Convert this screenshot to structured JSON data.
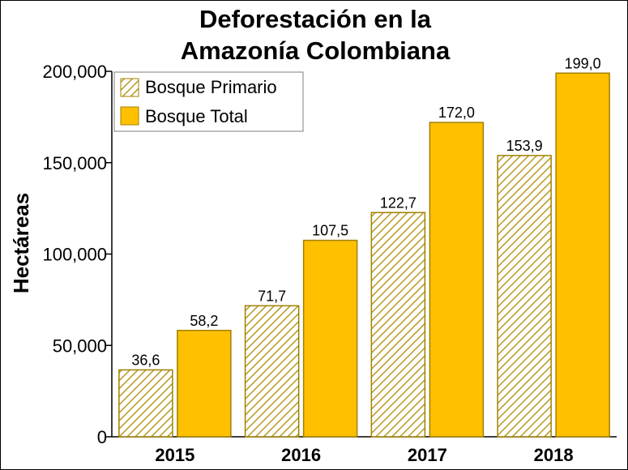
{
  "chart_data": {
    "type": "bar",
    "title_lines": [
      "Deforestación en la",
      "Amazonía Colombiana"
    ],
    "xlabel": "",
    "ylabel": "Hectáreas",
    "categories": [
      "2015",
      "2016",
      "2017",
      "2018"
    ],
    "ylim": [
      0,
      200000
    ],
    "yticks": [
      0,
      50000,
      100000,
      150000,
      200000
    ],
    "ytick_labels": [
      "0",
      "50,000",
      "100,000",
      "150,000",
      "200,000"
    ],
    "grid": false,
    "legend_position": "top-left",
    "series": [
      {
        "name": "Bosque Primario",
        "values": [
          36600,
          71700,
          122700,
          153900
        ],
        "labels": [
          "36,6",
          "71,7",
          "122,7",
          "153,9"
        ],
        "style": "hatched",
        "color": "#FFFFFF",
        "edge_color": "#A08000",
        "hatch_color": "#B89A20"
      },
      {
        "name": "Bosque Total",
        "values": [
          58200,
          107500,
          172000,
          199000
        ],
        "labels": [
          "58,2",
          "107,5",
          "172,0",
          "199,0"
        ],
        "style": "solid",
        "color": "#FFC000",
        "edge_color": "#A08000"
      }
    ]
  }
}
